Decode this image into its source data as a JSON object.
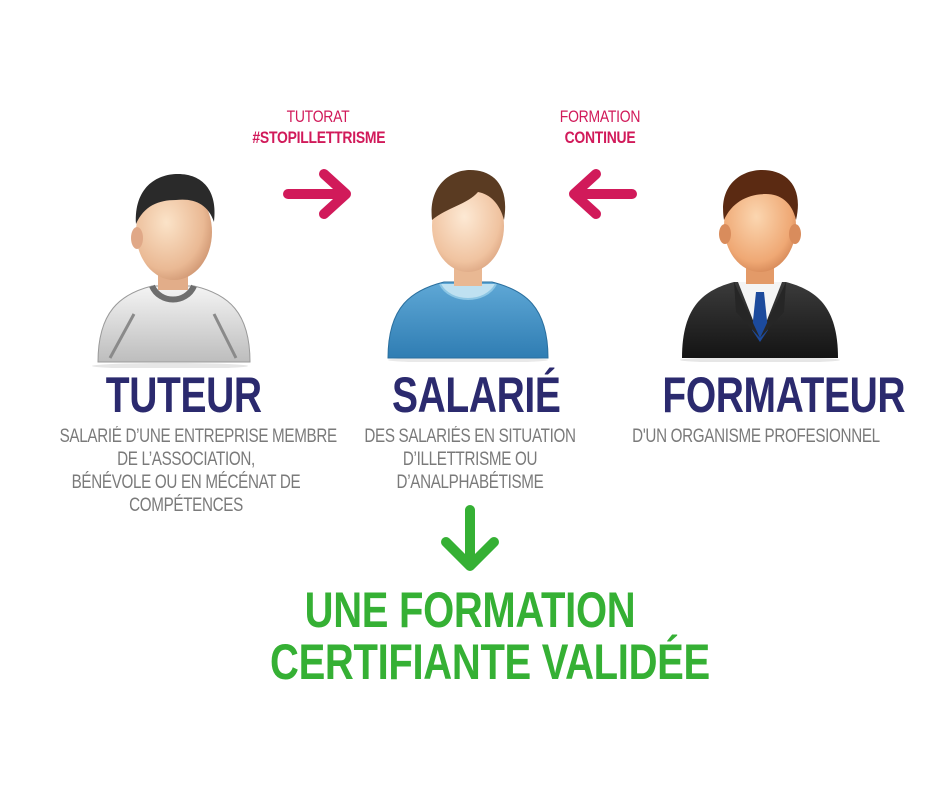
{
  "colors": {
    "accent": "#d11a5a",
    "navy": "#2b2a6e",
    "gray_text": "#7a7a7a",
    "green": "#35b034"
  },
  "labels": {
    "tutorat_line1": "TUTORAT",
    "tutorat_line2": "#STOPILLETTRISME",
    "formation_line1": "FORMATION",
    "formation_line2": "CONTINUE"
  },
  "roles": {
    "tuteur": {
      "icon": "tutor-person-icon",
      "title": "TUTEUR",
      "desc": [
        "SALARIÉ D’UNE ENTREPRISE MEMBRE",
        "DE L’ASSOCIATION,",
        "BÉNÉVOLE OU EN MÉCÉNAT DE",
        "COMPÉTENCES"
      ]
    },
    "salarie": {
      "icon": "employee-person-icon",
      "title": "SALARIÉ",
      "desc": [
        "DES SALARIÉS EN SITUATION",
        "D’ILLETTRISME OU",
        "D’ANALPHABÉTISME"
      ]
    },
    "formateur": {
      "icon": "trainer-person-icon",
      "title": "FORMATEUR",
      "desc": [
        "D'UN ORGANISME PROFESIONNEL"
      ]
    }
  },
  "result": {
    "line1": "UNE FORMATION",
    "line2": "CERTIFIANTE VALIDÉE"
  }
}
